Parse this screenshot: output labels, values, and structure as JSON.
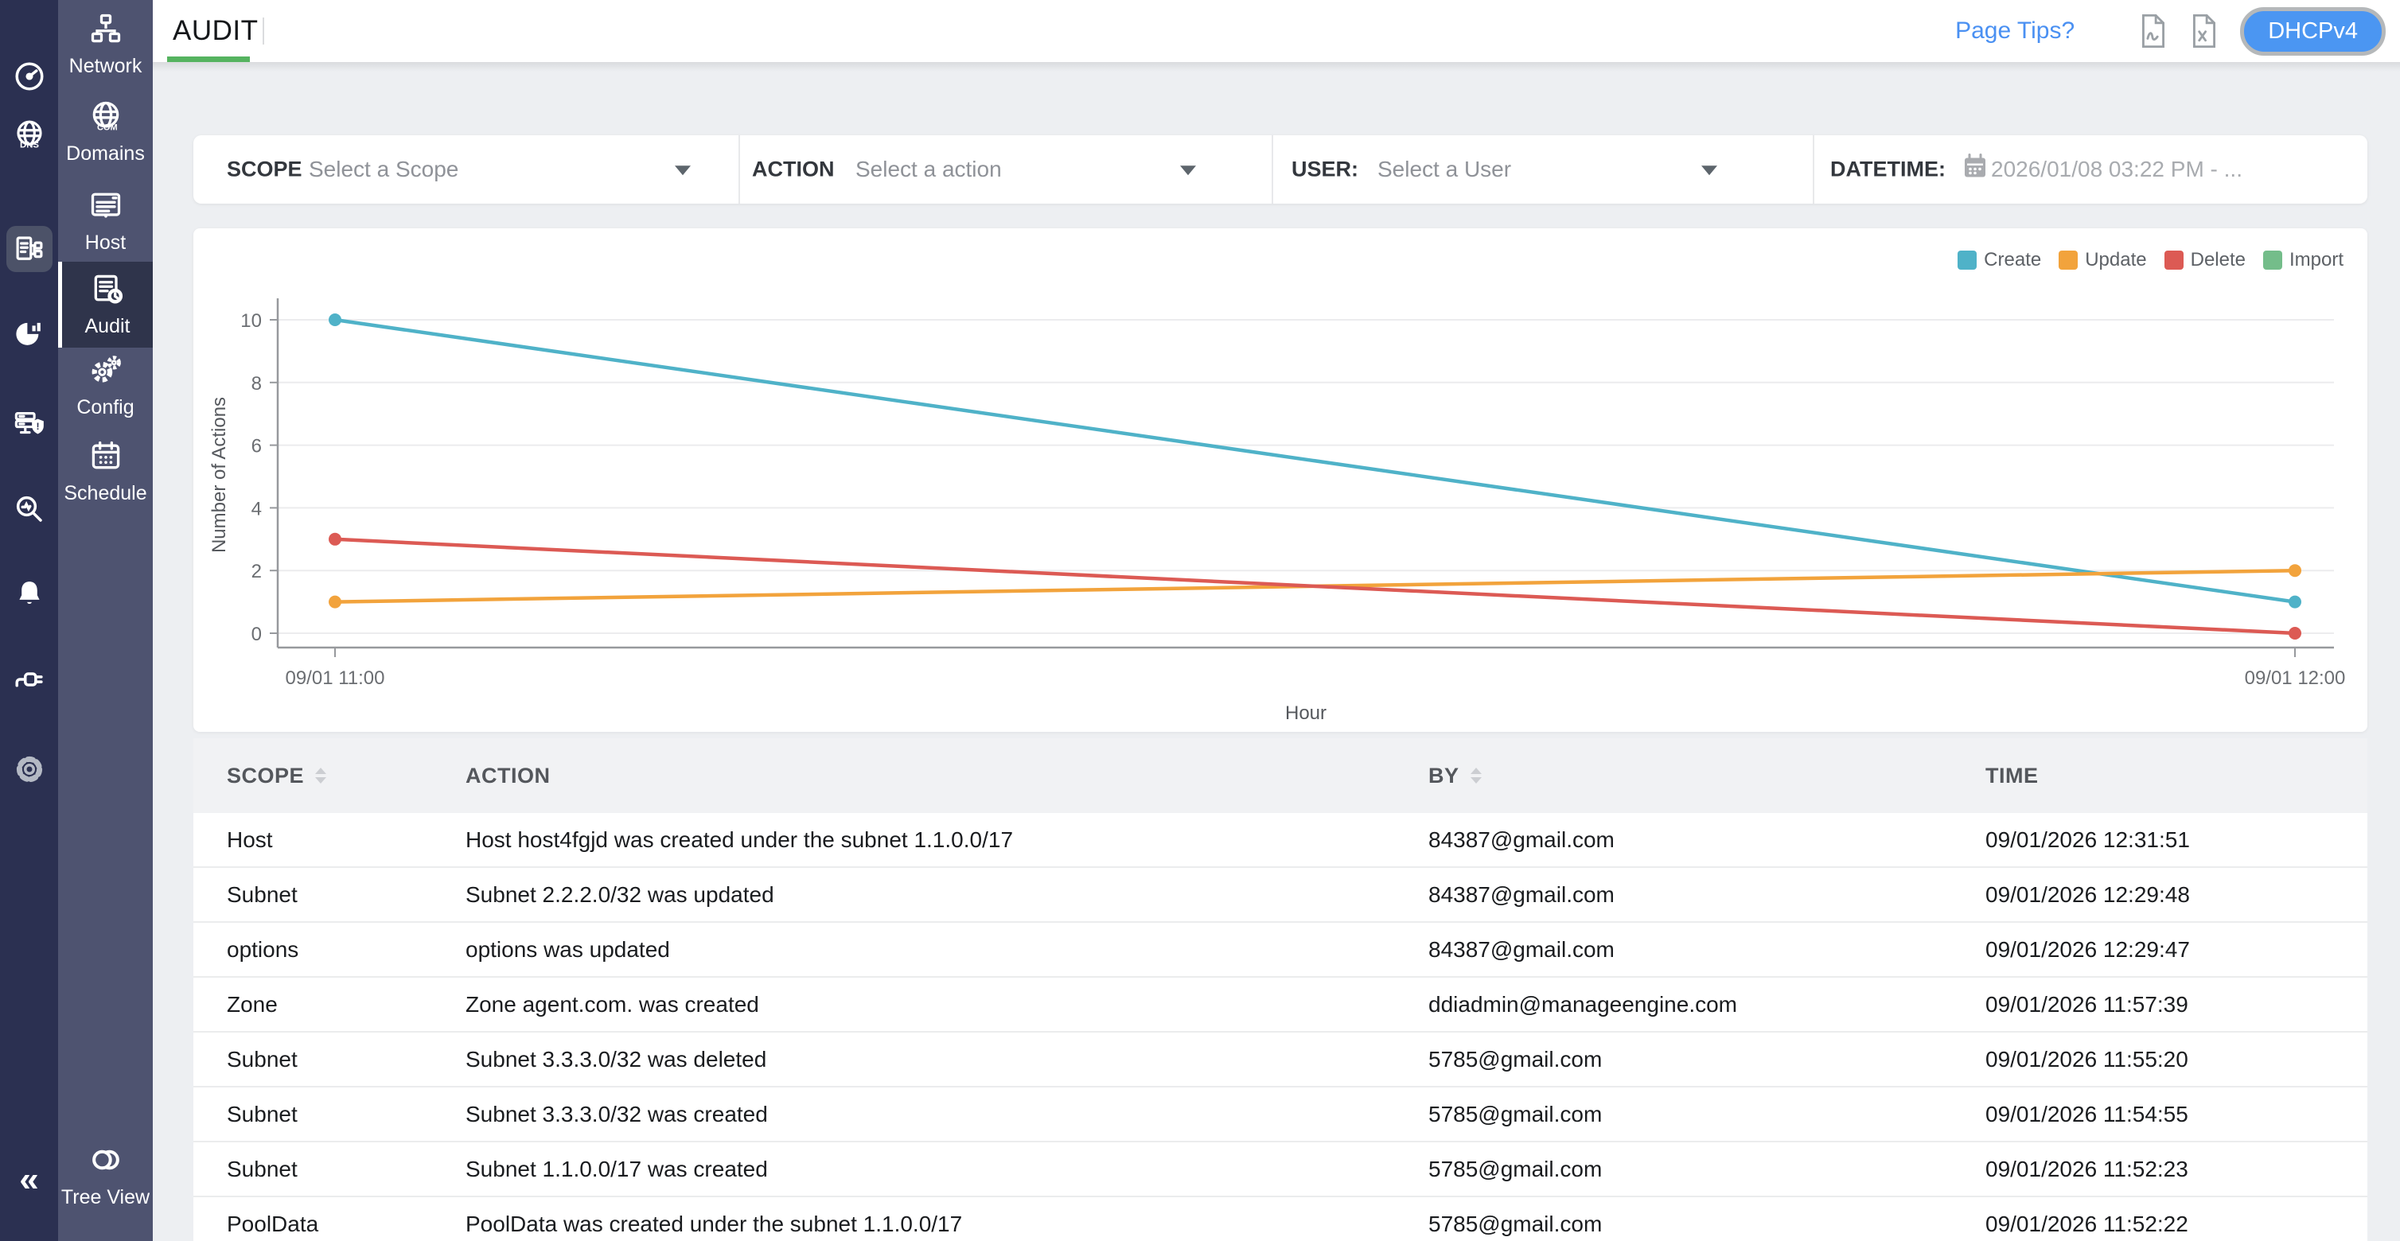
{
  "topbar": {
    "tab": "AUDIT",
    "page_tips": "Page Tips?",
    "mode_button": "DHCPv4",
    "export_icons": [
      "pdf-export-icon",
      "excel-export-icon"
    ]
  },
  "sidebar_primary": {
    "icons": [
      "dashboard-gauge-icon",
      "dns-globe-icon",
      "ipam-icon",
      "reports-pie-icon",
      "dhcp-server-shield-icon",
      "audit-search-icon",
      "alerts-bell-icon",
      "integrations-plug-icon",
      "settings-gear-icon"
    ],
    "selected_icon": "ipam-icon",
    "collapse_glyph": "«"
  },
  "sidebar_secondary": {
    "items": [
      {
        "label": "Network",
        "icon": "network-icon",
        "selected": false
      },
      {
        "label": "Domains",
        "icon": "domains-globe-icon",
        "selected": false
      },
      {
        "label": "Host",
        "icon": "host-window-icon",
        "selected": false
      },
      {
        "label": "Audit",
        "icon": "audit-doc-clock-icon",
        "selected": true
      },
      {
        "label": "Config",
        "icon": "config-gears-icon",
        "selected": false
      },
      {
        "label": "Schedule",
        "icon": "schedule-calendar-icon",
        "selected": false
      }
    ],
    "bottom_item": {
      "label": "Tree View",
      "icon": "tree-view-toggle-icon"
    }
  },
  "filters": {
    "scope": {
      "label": "SCOPE",
      "placeholder": "Select a Scope"
    },
    "action": {
      "label": "ACTION",
      "placeholder": "Select a action"
    },
    "user": {
      "label": "USER:",
      "placeholder": "Select a User"
    },
    "datetime": {
      "label": "DATETIME:",
      "value": "2026/01/08 03:22 PM - ...",
      "icon": "calendar-icon"
    }
  },
  "chart_data": {
    "type": "line",
    "x": [
      "09/01 11:00",
      "09/01 12:00"
    ],
    "xlabel": "Hour",
    "ylabel": "Number of Actions",
    "ylim": [
      0,
      10
    ],
    "yticks": [
      0,
      2,
      4,
      6,
      8,
      10
    ],
    "grid": true,
    "legend_position": "top-right",
    "series": [
      {
        "name": "Create",
        "color": "#4fb2c8",
        "values": [
          10,
          1
        ]
      },
      {
        "name": "Update",
        "color": "#f2a33c",
        "values": [
          1,
          2
        ]
      },
      {
        "name": "Delete",
        "color": "#dc5a54",
        "values": [
          3,
          0
        ]
      },
      {
        "name": "Import",
        "color": "#74bd8a",
        "values": []
      }
    ]
  },
  "table": {
    "columns": [
      {
        "label": "SCOPE",
        "sortable": true
      },
      {
        "label": "ACTION",
        "sortable": false
      },
      {
        "label": "BY",
        "sortable": true
      },
      {
        "label": "TIME",
        "sortable": false
      }
    ],
    "rows": [
      {
        "scope": "Host",
        "action": "Host host4fgjd was created under the subnet 1.1.0.0/17",
        "by": "84387@gmail.com",
        "time": "09/01/2026 12:31:51"
      },
      {
        "scope": "Subnet",
        "action": "Subnet 2.2.2.0/32 was updated",
        "by": "84387@gmail.com",
        "time": "09/01/2026 12:29:48"
      },
      {
        "scope": "options",
        "action": "options was updated",
        "by": "84387@gmail.com",
        "time": "09/01/2026 12:29:47"
      },
      {
        "scope": "Zone",
        "action": "Zone agent.com. was created",
        "by": "ddiadmin@manageengine.com",
        "time": "09/01/2026 11:57:39"
      },
      {
        "scope": "Subnet",
        "action": "Subnet 3.3.3.0/32 was deleted",
        "by": "5785@gmail.com",
        "time": "09/01/2026 11:55:20"
      },
      {
        "scope": "Subnet",
        "action": "Subnet 3.3.3.0/32 was created",
        "by": "5785@gmail.com",
        "time": "09/01/2026 11:54:55"
      },
      {
        "scope": "Subnet",
        "action": "Subnet 1.1.0.0/17 was created",
        "by": "5785@gmail.com",
        "time": "09/01/2026 11:52:23"
      },
      {
        "scope": "PoolData",
        "action": "PoolData was created under the subnet 1.1.0.0/17",
        "by": "5785@gmail.com",
        "time": "09/01/2026 11:52:22"
      }
    ]
  },
  "colors": {
    "sidebar_primary_bg": "#2b3051",
    "sidebar_secondary_bg": "#4e5370",
    "selected_item_bg": "#2f344b",
    "tab_underline": "#55b35f",
    "link_blue": "#4a90f2",
    "pill_blue": "#4b96f2",
    "content_bg": "#edeff2"
  }
}
